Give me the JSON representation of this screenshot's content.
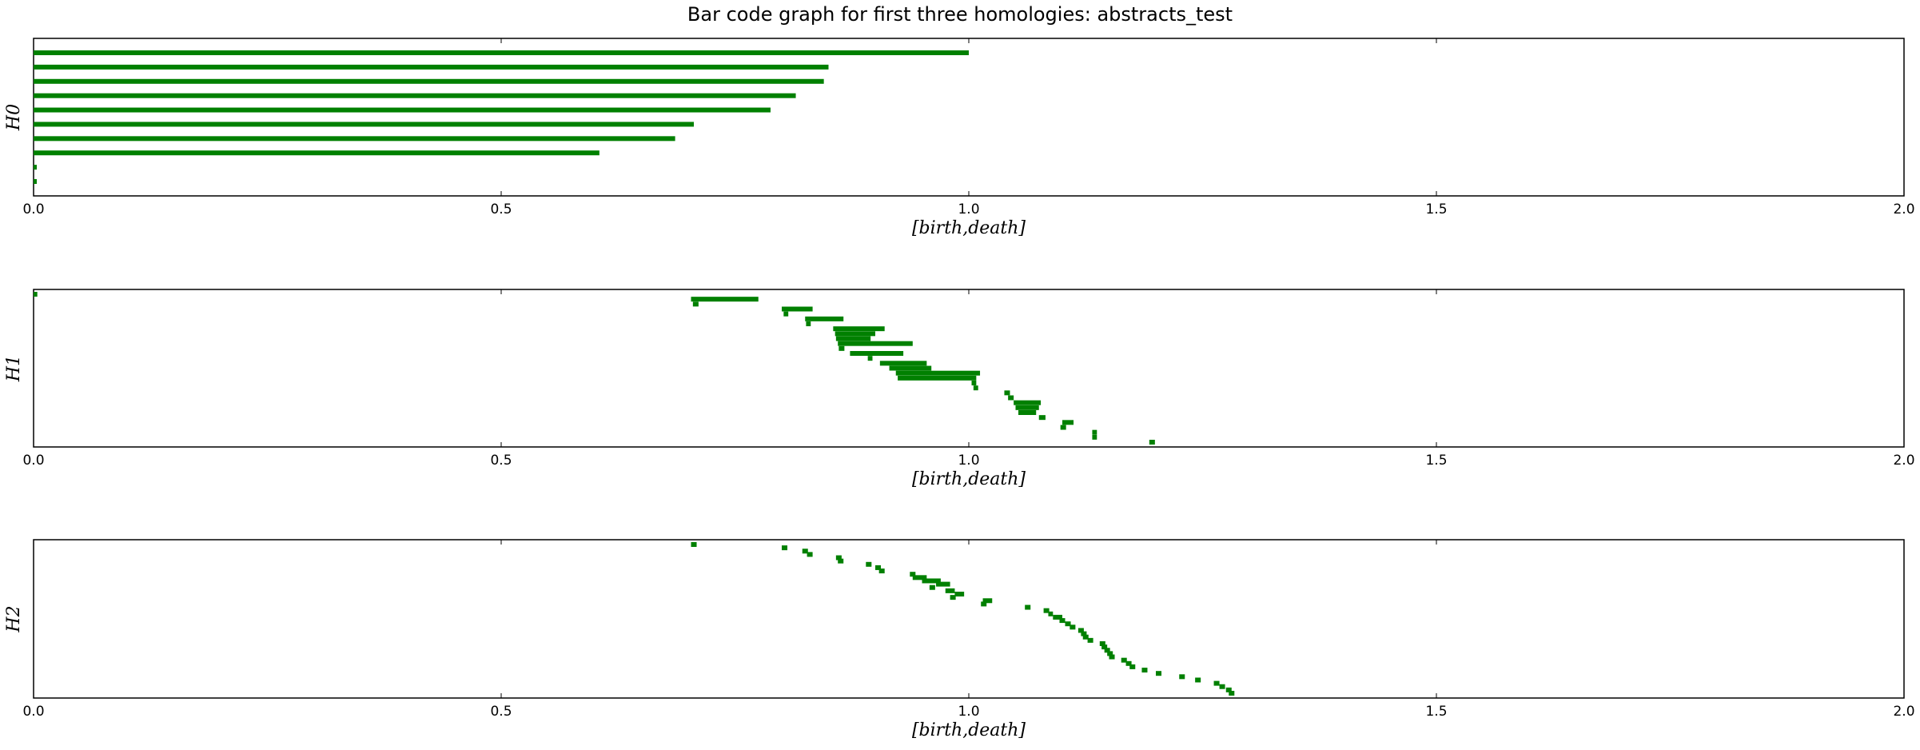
{
  "title": "Bar code graph for first three homologies: abstracts_test",
  "bar_color": "#008000",
  "chart_data": [
    {
      "type": "bar",
      "ylabel": "H0",
      "xlabel": "[birth,death]",
      "xlim": [
        0,
        2.0
      ],
      "xticks": [
        "0.0",
        "0.5",
        "1.0",
        "1.5",
        "2.0"
      ],
      "grid": false,
      "intervals": [
        [
          0,
          1.0
        ],
        [
          0,
          0.85
        ],
        [
          0,
          0.845
        ],
        [
          0,
          0.815
        ],
        [
          0,
          0.788
        ],
        [
          0,
          0.706
        ],
        [
          0,
          0.686
        ],
        [
          0,
          0.605
        ],
        [
          0,
          0.002
        ],
        [
          0,
          0.002
        ]
      ]
    },
    {
      "type": "bar",
      "ylabel": "H1",
      "xlabel": "[birth,death]",
      "xlim": [
        0,
        2.0
      ],
      "xticks": [
        "0.0",
        "0.5",
        "1.0",
        "1.5",
        "2.0"
      ],
      "grid": false,
      "intervals": [
        [
          0.0,
          0.004
        ],
        [
          0.703,
          0.775
        ],
        [
          0.705,
          0.711
        ],
        [
          0.8,
          0.833
        ],
        [
          0.802,
          0.807
        ],
        [
          0.825,
          0.866
        ],
        [
          0.826,
          0.831
        ],
        [
          0.855,
          0.91
        ],
        [
          0.857,
          0.9
        ],
        [
          0.858,
          0.895
        ],
        [
          0.86,
          0.94
        ],
        [
          0.861,
          0.867
        ],
        [
          0.873,
          0.93
        ],
        [
          0.892,
          0.897
        ],
        [
          0.905,
          0.955
        ],
        [
          0.915,
          0.96
        ],
        [
          0.922,
          1.012
        ],
        [
          0.924,
          1.008
        ],
        [
          1.003,
          1.008
        ],
        [
          1.005,
          1.01
        ],
        [
          1.038,
          1.044
        ],
        [
          1.042,
          1.048
        ],
        [
          1.048,
          1.077
        ],
        [
          1.05,
          1.075
        ],
        [
          1.053,
          1.072
        ],
        [
          1.075,
          1.082
        ],
        [
          1.1,
          1.112
        ],
        [
          1.098,
          1.104
        ],
        [
          1.132,
          1.137
        ],
        [
          1.132,
          1.137
        ],
        [
          1.193,
          1.199
        ]
      ]
    },
    {
      "type": "bar",
      "ylabel": "H2",
      "xlabel": "[birth,death]",
      "xlim": [
        0,
        2.0
      ],
      "xticks": [
        "0.0",
        "0.5",
        "1.0",
        "1.5",
        "2.0"
      ],
      "grid": false,
      "intervals": [
        [
          0.703,
          0.709
        ],
        [
          0.8,
          0.806
        ],
        [
          0.822,
          0.828
        ],
        [
          0.827,
          0.833
        ],
        [
          0.858,
          0.864
        ],
        [
          0.86,
          0.866
        ],
        [
          0.89,
          0.896
        ],
        [
          0.9,
          0.906
        ],
        [
          0.904,
          0.91
        ],
        [
          0.937,
          0.943
        ],
        [
          0.94,
          0.955
        ],
        [
          0.95,
          0.97
        ],
        [
          0.965,
          0.98
        ],
        [
          0.958,
          0.964
        ],
        [
          0.975,
          0.985
        ],
        [
          0.985,
          0.995
        ],
        [
          0.98,
          0.986
        ],
        [
          1.015,
          1.025
        ],
        [
          1.013,
          1.019
        ],
        [
          1.06,
          1.066
        ],
        [
          1.08,
          1.086
        ],
        [
          1.085,
          1.09
        ],
        [
          1.09,
          1.1
        ],
        [
          1.097,
          1.103
        ],
        [
          1.103,
          1.109
        ],
        [
          1.108,
          1.114
        ],
        [
          1.117,
          1.123
        ],
        [
          1.12,
          1.126
        ],
        [
          1.122,
          1.128
        ],
        [
          1.127,
          1.133
        ],
        [
          1.14,
          1.146
        ],
        [
          1.142,
          1.148
        ],
        [
          1.145,
          1.151
        ],
        [
          1.148,
          1.154
        ],
        [
          1.15,
          1.156
        ],
        [
          1.163,
          1.169
        ],
        [
          1.168,
          1.174
        ],
        [
          1.172,
          1.178
        ],
        [
          1.185,
          1.191
        ],
        [
          1.2,
          1.206
        ],
        [
          1.225,
          1.231
        ],
        [
          1.242,
          1.248
        ],
        [
          1.262,
          1.268
        ],
        [
          1.268,
          1.274
        ],
        [
          1.275,
          1.281
        ],
        [
          1.278,
          1.284
        ]
      ]
    }
  ]
}
